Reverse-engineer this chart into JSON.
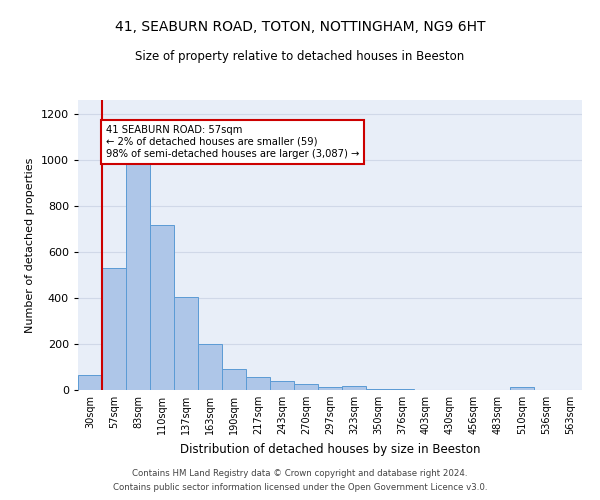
{
  "title_line1": "41, SEABURN ROAD, TOTON, NOTTINGHAM, NG9 6HT",
  "title_line2": "Size of property relative to detached houses in Beeston",
  "xlabel": "Distribution of detached houses by size in Beeston",
  "ylabel": "Number of detached properties",
  "categories": [
    "30sqm",
    "57sqm",
    "83sqm",
    "110sqm",
    "137sqm",
    "163sqm",
    "190sqm",
    "217sqm",
    "243sqm",
    "270sqm",
    "297sqm",
    "323sqm",
    "350sqm",
    "376sqm",
    "403sqm",
    "430sqm",
    "456sqm",
    "483sqm",
    "510sqm",
    "536sqm",
    "563sqm"
  ],
  "values": [
    65,
    530,
    1000,
    715,
    405,
    198,
    90,
    57,
    38,
    28,
    14,
    18,
    5,
    3,
    2,
    2,
    2,
    1,
    15,
    1,
    1
  ],
  "bar_color": "#aec6e8",
  "bar_edge_color": "#5b9bd5",
  "highlight_index": 1,
  "highlight_line_color": "#cc0000",
  "annotation_text": "41 SEABURN ROAD: 57sqm\n← 2% of detached houses are smaller (59)\n98% of semi-detached houses are larger (3,087) →",
  "annotation_box_color": "#ffffff",
  "annotation_box_edge_color": "#cc0000",
  "ylim": [
    0,
    1260
  ],
  "yticks": [
    0,
    200,
    400,
    600,
    800,
    1000,
    1200
  ],
  "footer_line1": "Contains HM Land Registry data © Crown copyright and database right 2024.",
  "footer_line2": "Contains public sector information licensed under the Open Government Licence v3.0.",
  "background_color": "#ffffff",
  "grid_color": "#d0d8e8",
  "plot_bg_color": "#e8eef8"
}
